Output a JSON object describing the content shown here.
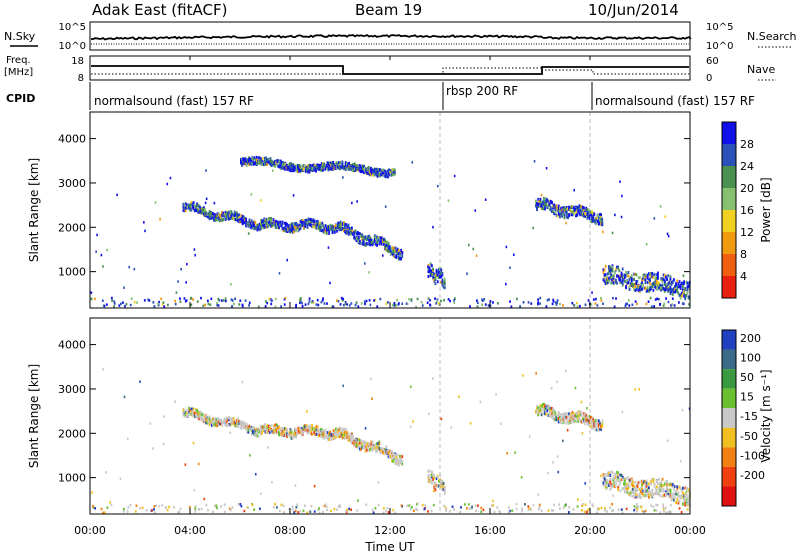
{
  "header": {
    "station": "Adak East (fitACF)",
    "beam": "Beam 19",
    "date": "10/Jun/2014"
  },
  "strips": {
    "nsky_label": "N.Sky",
    "nsky_ticks": [
      "10^5",
      "10^0"
    ],
    "nsearch_label": "N.Search",
    "nsearch_ticks": [
      "10^5",
      "10^0"
    ],
    "freq_label_1": "Freq.",
    "freq_label_2": "[MHz]",
    "freq_ticks": [
      "18",
      "8"
    ],
    "nave_label": "Nave",
    "nave_ticks": [
      "60",
      "0"
    ],
    "cpid_label": "CPID",
    "cpid_segments": [
      "normalsound (fast) 157 RF",
      "rbsp 200 RF",
      "normalsound (fast) 157 RF"
    ]
  },
  "axes": {
    "ylabel": "Slant Range [km]",
    "xlabel": "Time UT",
    "yticks": [
      "1000",
      "2000",
      "3000",
      "4000"
    ],
    "xticks": [
      "00:00",
      "04:00",
      "08:00",
      "12:00",
      "16:00",
      "20:00",
      "00:00"
    ]
  },
  "power_colorbar": {
    "label": "Power [dB]",
    "ticks": [
      "4",
      "8",
      "12",
      "16",
      "20",
      "24",
      "28"
    ],
    "colors": [
      "#1010e8",
      "#2a52b8",
      "#4a9050",
      "#86c070",
      "#f0d020",
      "#f09a10",
      "#f06010",
      "#e82010"
    ]
  },
  "velocity_colorbar": {
    "label": "Velocity [m s⁻¹]",
    "ticks": [
      "200",
      "100",
      "50",
      "15",
      "-15",
      "-50",
      "-100",
      "-200"
    ],
    "colors": [
      "#2040c0",
      "#3a6a88",
      "#3a9a40",
      "#6ac030",
      "#c8c8c8",
      "#f0c020",
      "#f08010",
      "#f04010",
      "#e01010"
    ]
  },
  "chart_data": [
    {
      "type": "heatmap",
      "title": "Power",
      "xlabel": "Time UT",
      "ylabel": "Slant Range [km]",
      "xlim": [
        "00:00",
        "24:00"
      ],
      "ylim": [
        180,
        4600
      ],
      "mode_boundaries_hours": [
        14.0,
        20.0
      ],
      "bands": [
        {
          "t_start": 3.7,
          "t_end": 6.8,
          "range_start": 2450,
          "range_end": 2050,
          "thickness": 90
        },
        {
          "t_start": 6.8,
          "t_end": 9.8,
          "range_start": 2050,
          "range_end": 2000,
          "thickness": 100
        },
        {
          "t_start": 9.8,
          "t_end": 12.5,
          "range_start": 2000,
          "range_end": 1400,
          "thickness": 110
        },
        {
          "t_start": 6.0,
          "t_end": 12.2,
          "range_start": 3450,
          "range_end": 3250,
          "thickness": 80
        },
        {
          "t_start": 13.5,
          "t_end": 14.2,
          "range_start": 1000,
          "range_end": 800,
          "thickness": 150
        },
        {
          "t_start": 17.8,
          "t_end": 20.5,
          "range_start": 2500,
          "range_end": 2200,
          "thickness": 120
        },
        {
          "t_start": 20.5,
          "t_end": 24.0,
          "range_start": 900,
          "range_end": 600,
          "thickness": 200
        }
      ]
    },
    {
      "type": "heatmap",
      "title": "Velocity",
      "xlabel": "Time UT",
      "ylabel": "Slant Range [km]",
      "xlim": [
        "00:00",
        "24:00"
      ],
      "ylim": [
        180,
        4600
      ],
      "mode_boundaries_hours": [
        14.0,
        20.0
      ],
      "bands": [
        {
          "t_start": 3.7,
          "t_end": 6.8,
          "range_start": 2450,
          "range_end": 2050,
          "thickness": 90
        },
        {
          "t_start": 6.8,
          "t_end": 9.8,
          "range_start": 2050,
          "range_end": 2000,
          "thickness": 100
        },
        {
          "t_start": 9.8,
          "t_end": 12.5,
          "range_start": 2000,
          "range_end": 1400,
          "thickness": 110
        },
        {
          "t_start": 13.5,
          "t_end": 14.2,
          "range_start": 1000,
          "range_end": 800,
          "thickness": 150
        },
        {
          "t_start": 17.8,
          "t_end": 20.5,
          "range_start": 2500,
          "range_end": 2200,
          "thickness": 120
        },
        {
          "t_start": 20.5,
          "t_end": 24.0,
          "range_start": 900,
          "range_end": 600,
          "thickness": 200
        }
      ]
    }
  ]
}
